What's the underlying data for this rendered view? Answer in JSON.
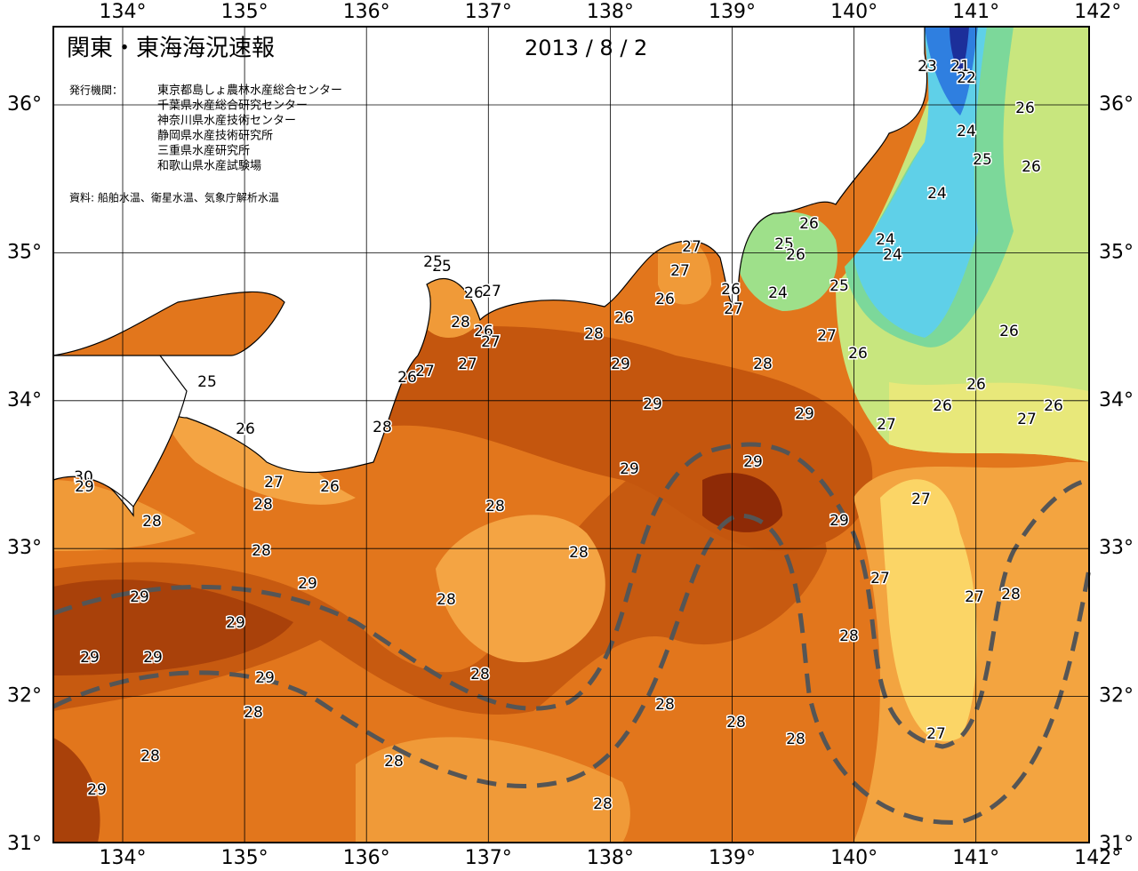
{
  "map": {
    "title": "関東・東海海況速報",
    "date": "2013 / 8 / 2",
    "agencies_label": "発行機関：",
    "agencies": [
      "東京都島しょ農林水産総合センター",
      "千葉県水産総合研究センター",
      "神奈川県水産技術センター",
      "静岡県水産技術研究所",
      "三重県水産研究所",
      "和歌山県水産試験場"
    ],
    "source": "資料: 船舶水温、衛星水温、気象庁解析水温",
    "lon_ticks": [
      {
        "value": 134,
        "label": "134°"
      },
      {
        "value": 135,
        "label": "135°"
      },
      {
        "value": 136,
        "label": "136°"
      },
      {
        "value": 137,
        "label": "137°"
      },
      {
        "value": 138,
        "label": "138°"
      },
      {
        "value": 139,
        "label": "139°"
      },
      {
        "value": 140,
        "label": "140°"
      },
      {
        "value": 141,
        "label": "141°"
      },
      {
        "value": 142,
        "label": "142°"
      }
    ],
    "lat_ticks": [
      {
        "value": 31,
        "label": "31°"
      },
      {
        "value": 32,
        "label": "32°"
      },
      {
        "value": 33,
        "label": "33°"
      },
      {
        "value": 34,
        "label": "34°"
      },
      {
        "value": 35,
        "label": "35°"
      },
      {
        "value": 36,
        "label": "36°"
      }
    ],
    "contour_labels": [
      23,
      21,
      22,
      26,
      24,
      25,
      26,
      24,
      24,
      24,
      26,
      25,
      26,
      25,
      24,
      27,
      27,
      26,
      26,
      27,
      26,
      27,
      26,
      26,
      26,
      26,
      26,
      27,
      27,
      28,
      28,
      29,
      29,
      29,
      29,
      29,
      27,
      29,
      27,
      27,
      28,
      28,
      27,
      28,
      28,
      28,
      28,
      28,
      28,
      28,
      28,
      28,
      28,
      28,
      28,
      28,
      28,
      29,
      29,
      29,
      29,
      29,
      29,
      29,
      30,
      29,
      27,
      26,
      26,
      25,
      28,
      27,
      26,
      28,
      26,
      27,
      27,
      26,
      27,
      25,
      25
    ]
  }
}
